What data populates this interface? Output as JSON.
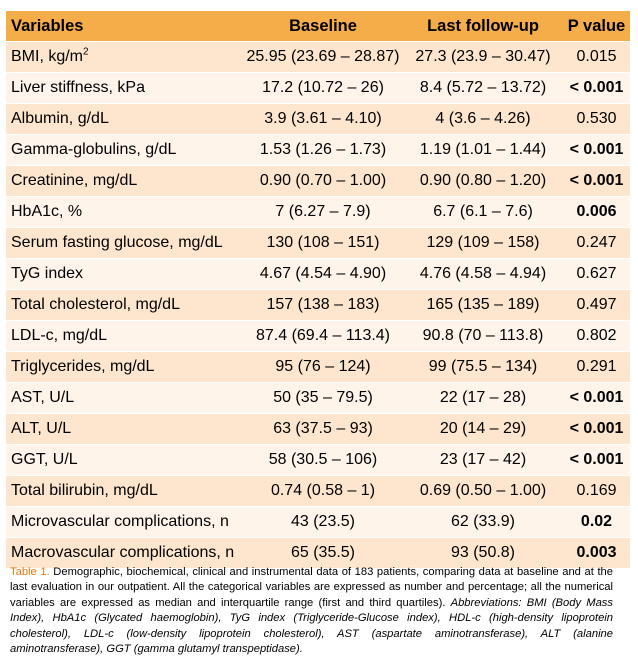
{
  "header": {
    "variables": "Variables",
    "baseline": "Baseline",
    "last": "Last follow-up",
    "p": "P value"
  },
  "rows": [
    {
      "variable": "BMI, kg/m",
      "sup": "2",
      "baseline": "25.95 (23.69 – 28.87)",
      "last": "27.3 (23.9 – 30.47)",
      "p": "0.015",
      "bold": false
    },
    {
      "variable": "Liver stiffness, kPa",
      "baseline": "17.2 (10.72 – 26)",
      "last": "8.4 (5.72 – 13.72)",
      "p": "< 0.001",
      "bold": true
    },
    {
      "variable": "Albumin, g/dL",
      "baseline": "3.9 (3.61 – 4.10)",
      "last": "4 (3.6 – 4.26)",
      "p": "0.530",
      "bold": false
    },
    {
      "variable": "Gamma-globulins, g/dL",
      "baseline": "1.53 (1.26 – 1.73)",
      "last": "1.19 (1.01 – 1.44)",
      "p": "< 0.001",
      "bold": true
    },
    {
      "variable": "Creatinine, mg/dL",
      "baseline": "0.90 (0.70 – 1.00)",
      "last": "0.90 (0.80 – 1.20)",
      "p": "< 0.001",
      "bold": true
    },
    {
      "variable": "HbA1c, %",
      "baseline": "7 (6.27 – 7.9)",
      "last": "6.7 (6.1 – 7.6)",
      "p": "0.006",
      "bold": true
    },
    {
      "variable": "Serum fasting glucose, mg/dL",
      "baseline": "130 (108 – 151)",
      "last": "129 (109 – 158)",
      "p": "0.247",
      "bold": false
    },
    {
      "variable": "TyG index",
      "baseline": "4.67 (4.54 – 4.90)",
      "last": "4.76 (4.58 – 4.94)",
      "p": "0.627",
      "bold": false
    },
    {
      "variable": "Total cholesterol, mg/dL",
      "baseline": "157 (138 – 183)",
      "last": "165 (135 – 189)",
      "p": "0.497",
      "bold": false
    },
    {
      "variable": "LDL-c, mg/dL",
      "baseline": "87.4 (69.4 – 113.4)",
      "last": "90.8 (70 – 113.8)",
      "p": "0.802",
      "bold": false
    },
    {
      "variable": "Triglycerides, mg/dL",
      "baseline": "95 (76 – 124)",
      "last": "99 (75.5 – 134)",
      "p": "0.291",
      "bold": false
    },
    {
      "variable": "AST, U/L",
      "baseline": "50 (35 – 79.5)",
      "last": "22 (17 – 28)",
      "p": "< 0.001",
      "bold": true
    },
    {
      "variable": "ALT, U/L",
      "baseline": "63 (37.5 – 93)",
      "last": "20 (14 – 29)",
      "p": "< 0.001",
      "bold": true
    },
    {
      "variable": "GGT, U/L",
      "baseline": "58 (30.5 – 106)",
      "last": "23 (17 – 42)",
      "p": "< 0.001",
      "bold": true
    },
    {
      "variable": "Total bilirubin, mg/dL",
      "baseline": "0.74 (0.58 – 1)",
      "last": "0.69 (0.50 – 1.00)",
      "p": "0.169",
      "bold": false
    },
    {
      "variable": "Microvascular complications, n",
      "baseline": "43 (23.5)",
      "last": "62 (33.9)",
      "p": "0.02",
      "bold": true
    },
    {
      "variable": "Macrovascular complications, n",
      "baseline": "65 (35.5)",
      "last": "93 (50.8)",
      "p": "0.003",
      "bold": true
    }
  ],
  "caption": {
    "label": "Table 1.",
    "text": " Demographic, biochemical, clinical and instrumental data of 183 patients, comparing data at baseline and at the last evaluation in our outpatient. All the categorical variables are expressed as number and percentage; all the numerical variables are expressed as median and interquartile range (first and third quartiles). ",
    "abbreviations": "Abbreviations: BMI (Body Mass Index), HbA1c (Glycated haemoglobin), TyG index (Triglyceride-Glucose index), HDL-c (high-density lipoprotein cholesterol), LDL-c (low-density lipoprotein cholesterol), AST (aspartate aminotransferase), ALT (alanine aminotransferase), GGT (gamma glutamyl transpeptidase)."
  },
  "colors": {
    "header_bg": "#f5ad4a",
    "row_odd": "#fde6cd",
    "row_even": "#fef4ea",
    "caption_label": "#e07b10"
  }
}
